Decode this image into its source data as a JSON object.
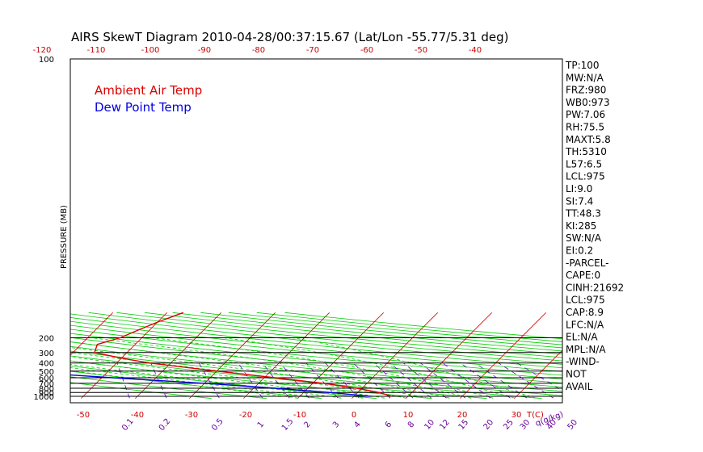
{
  "chart_data": {
    "type": "line",
    "title": "AIRS SkewT Diagram 2010-04-28/00:37:15.67 (Lat/Lon -55.77/5.31 deg)",
    "ylabel": "PRESSURE (MB)",
    "xlabel": "T(C)",
    "mixing_ratio_unit": "q(g/kg)",
    "pressure_ticks": [
      "100",
      "200",
      "300",
      "400",
      "500",
      "600",
      "700",
      "800",
      "900",
      "1000"
    ],
    "pressure_tick_values": [
      100,
      200,
      300,
      400,
      500,
      600,
      700,
      800,
      900,
      1000
    ],
    "top_temp_ticks": [
      "-120",
      "-110",
      "-100",
      "-90",
      "-80",
      "-70",
      "-60",
      "-50",
      "-40"
    ],
    "bottom_temp_ticks": [
      "-50",
      "-40",
      "-30",
      "-20",
      "-10",
      "0",
      "10",
      "20",
      "30"
    ],
    "mixing_ratio_ticks": [
      "0.1",
      "0.2",
      "0.5",
      "1",
      "1.5",
      "2",
      "3",
      "4",
      "6",
      "8",
      "10",
      "12",
      "15",
      "20",
      "25",
      "30",
      "40",
      "50"
    ],
    "legend": [
      "Ambient Air Temp",
      "Dew Point Temp"
    ],
    "colors": {
      "ambient": "#dd0000",
      "dewpoint": "#0000dd",
      "isotherm": "#dd0000",
      "adiabat": "#00cc00",
      "mixing": "#6600cc",
      "grid": "#000000"
    },
    "series": [
      {
        "name": "Ambient Air Temp",
        "pressure": [
          100,
          130,
          160,
          200,
          240,
          300,
          350,
          400,
          500,
          600,
          700,
          800,
          900,
          1000
        ],
        "temperature": [
          -47,
          -50,
          -52,
          -54,
          -57,
          -56,
          -50,
          -44,
          -30,
          -18,
          -8,
          -1,
          4,
          7
        ]
      },
      {
        "name": "Dew Point Temp",
        "pressure": [
          100,
          130,
          160,
          200,
          240,
          300,
          350,
          400,
          500,
          600,
          700,
          800,
          900,
          1000
        ],
        "temperature": [
          -97,
          -107,
          -112,
          -115,
          -110,
          -100,
          -95,
          -88,
          -68,
          -48,
          -30,
          -16,
          -5,
          3
        ]
      }
    ],
    "indices": [
      "TP:100",
      "MW:N/A",
      "FRZ:980",
      "WB0:973",
      "PW:7.06",
      "RH:75.5",
      "MAXT:5.8",
      "TH:5310",
      "L57:6.5",
      "LCL:975",
      "LI:9.0",
      "SI:7.4",
      "TT:48.3",
      "KI:285",
      "SW:N/A",
      "EI:0.2",
      "-PARCEL-",
      "CAPE:0",
      "CINH:21692",
      "LCL:975",
      "CAP:8.9",
      "LFC:N/A",
      "EL:N/A",
      "MPL:N/A",
      "-WIND-",
      "NOT",
      "AVAIL"
    ]
  }
}
